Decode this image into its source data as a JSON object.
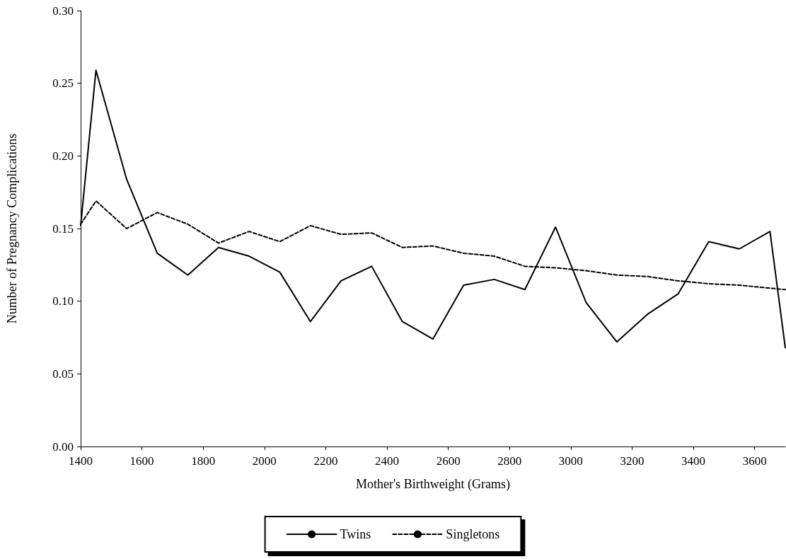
{
  "chart_data": {
    "type": "line",
    "xlabel": "Mother's Birthweight (Grams)",
    "ylabel": "Number of Pregnancy Complications",
    "x": [
      1400,
      1450,
      1550,
      1650,
      1750,
      1850,
      1950,
      2050,
      2150,
      2250,
      2350,
      2450,
      2550,
      2650,
      2750,
      2850,
      2950,
      3050,
      3150,
      3250,
      3350,
      3450,
      3550,
      3650,
      3700
    ],
    "series": [
      {
        "name": "Twins",
        "color": "#000000",
        "line_style": "solid",
        "values": [
          0.152,
          0.259,
          0.184,
          0.133,
          0.118,
          0.137,
          0.131,
          0.12,
          0.086,
          0.114,
          0.124,
          0.086,
          0.074,
          0.111,
          0.115,
          0.108,
          0.151,
          0.099,
          0.072,
          0.091,
          0.105,
          0.141,
          0.136,
          0.148,
          0.068
        ]
      },
      {
        "name": "Singletons",
        "color": "#000000",
        "line_style": "dashed",
        "values": [
          0.153,
          0.169,
          0.15,
          0.161,
          0.153,
          0.14,
          0.148,
          0.141,
          0.152,
          0.146,
          0.147,
          0.137,
          0.138,
          0.133,
          0.131,
          0.124,
          0.123,
          0.121,
          0.118,
          0.117,
          0.114,
          0.112,
          0.111,
          0.109,
          0.108
        ]
      }
    ],
    "xlim": [
      1400,
      3700
    ],
    "xticks": [
      1400,
      1600,
      1800,
      2000,
      2200,
      2400,
      2600,
      2800,
      3000,
      3200,
      3400,
      3600
    ],
    "ylim": [
      0,
      0.3
    ],
    "yticks": [
      {
        "value": 0,
        "label": "0.00"
      },
      {
        "value": 0.05,
        "label": "0.05"
      },
      {
        "value": 0.1,
        "label": "0.10"
      },
      {
        "value": 0.15,
        "label": "0.15"
      },
      {
        "value": 0.2,
        "label": "0.20"
      },
      {
        "value": 0.25,
        "label": "0.25"
      },
      {
        "value": 0.3,
        "label": "0.30"
      }
    ],
    "grid": false,
    "legend": "bottom",
    "marker": "none"
  }
}
